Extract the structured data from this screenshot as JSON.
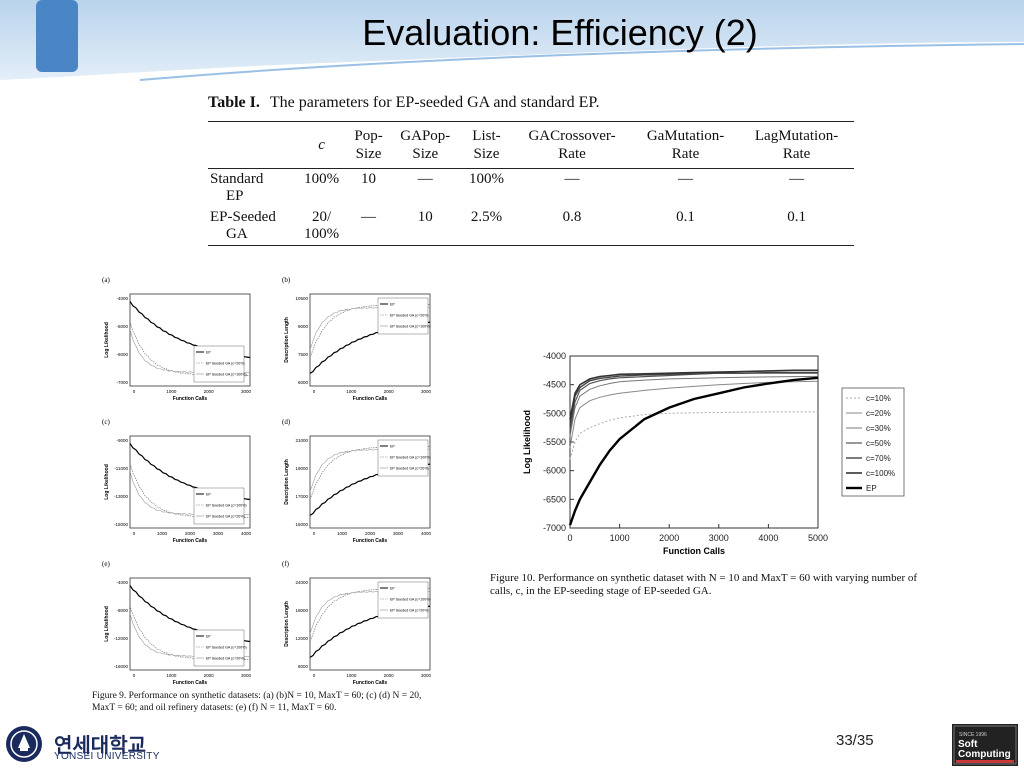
{
  "slide": {
    "title": "Evaluation: Efficiency (2)",
    "page_number": "33/35"
  },
  "table": {
    "label": "Table I.",
    "caption": "The parameters for EP-seeded GA and standard EP.",
    "headers": [
      [
        "",
        "c"
      ],
      [
        "Pop-",
        "Size"
      ],
      [
        "GAPop-",
        "Size"
      ],
      [
        "List-",
        "Size"
      ],
      [
        "GACrossover-",
        "Rate"
      ],
      [
        "GaMutation-",
        "Rate"
      ],
      [
        "LagMutation-",
        "Rate"
      ]
    ],
    "rows": [
      {
        "name": [
          "Standard",
          "EP"
        ],
        "c": [
          "100%",
          ""
        ],
        "values": [
          "10",
          "—",
          "100%",
          "—",
          "—",
          "—"
        ]
      },
      {
        "name": [
          "EP-Seeded",
          "GA"
        ],
        "c": [
          "20/",
          "100%"
        ],
        "values": [
          "—",
          "10",
          "2.5%",
          "0.8",
          "0.1",
          "0.1"
        ]
      }
    ]
  },
  "figure9": {
    "caption": "Figure 9.   Performance on synthetic datasets: (a) (b)N = 10, MaxT = 60; (c) (d) N = 20, MaxT = 60; and oil refinery datasets: (e) (f) N = 11, MaxT = 60.",
    "panels": [
      {
        "label": "(a)",
        "ylabel": "Log Likelihood",
        "xlabel": "Function Calls",
        "yticks": [
          "-4000",
          "-5000",
          "-6000",
          "-7000"
        ],
        "xticks": [
          "0",
          "1000",
          "2000",
          "3000"
        ],
        "legend": [
          "EP",
          "EP Seeded GA (c=20%)",
          "EP Seeded GA (c=100%)"
        ]
      },
      {
        "label": "(b)",
        "ylabel": "Description Length",
        "xlabel": "Function Calls",
        "yticks": [
          "10500",
          "9000",
          "7500",
          "6000"
        ],
        "xticks": [
          "0",
          "1000",
          "2000",
          "3000"
        ],
        "legend": [
          "EP",
          "EP Seeded GA (c=20%)",
          "EP Seeded GA (c=100%)"
        ]
      },
      {
        "label": "(c)",
        "ylabel": "Log Likelihood",
        "xlabel": "Function Calls",
        "yticks": [
          "-9000",
          "-11000",
          "-13000",
          "-15000"
        ],
        "xticks": [
          "0",
          "1000",
          "2000",
          "3000",
          "4000"
        ],
        "legend": [
          "EP",
          "EP Seeded GA (c=100%)",
          "EP Seeded GA (c=20%)"
        ]
      },
      {
        "label": "(d)",
        "ylabel": "Description Length",
        "xlabel": "Function Calls",
        "yticks": [
          "21000",
          "19000",
          "17000",
          "15000"
        ],
        "xticks": [
          "0",
          "1000",
          "2000",
          "3000",
          "4000"
        ],
        "legend": [
          "EP",
          "EP Seeded GA (c=100%)",
          "EP Seeded GA (c=20%)"
        ]
      },
      {
        "label": "(e)",
        "ylabel": "Log Likelihood",
        "xlabel": "Function Calls",
        "yticks": [
          "-4000",
          "-8000",
          "-12000",
          "-16000"
        ],
        "xticks": [
          "0",
          "1000",
          "2000",
          "3000"
        ],
        "legend": [
          "EP",
          "EP Seeded GA (c=100%)",
          "EP Seeded GA (c=20%)"
        ]
      },
      {
        "label": "(f)",
        "ylabel": "Description Length",
        "xlabel": "Function Calls",
        "yticks": [
          "24000",
          "18000",
          "12000",
          "8000"
        ],
        "xticks": [
          "0",
          "1000",
          "2000",
          "3000"
        ],
        "legend": [
          "EP",
          "EP Seeded GA (c=100%)",
          "EP Seeded GA (c=20%)"
        ]
      }
    ]
  },
  "figure10": {
    "caption": "Figure 10.   Performance on synthetic dataset with N = 10 and MaxT = 60 with varying number of calls, c, in the EP-seeding stage of EP-seeded GA."
  },
  "chart_data": {
    "type": "line",
    "xlabel": "Function Calls",
    "ylabel": "Log Likelihood",
    "xlim": [
      0,
      5000
    ],
    "ylim": [
      -7000,
      -4000
    ],
    "xticks": [
      0,
      1000,
      2000,
      3000,
      4000,
      5000
    ],
    "yticks": [
      -4000,
      -4500,
      -5000,
      -5500,
      -6000,
      -6500,
      -7000
    ],
    "grid": false,
    "legend_position": "right",
    "x": [
      0,
      100,
      200,
      400,
      600,
      800,
      1000,
      1500,
      2000,
      2500,
      3000,
      3500,
      4000,
      4500,
      5000
    ],
    "series": [
      {
        "name": "c=10%",
        "values": [
          -5800,
          -5500,
          -5350,
          -5250,
          -5180,
          -5120,
          -5080,
          -5020,
          -5000,
          -4990,
          -4985,
          -4980,
          -4975,
          -4975,
          -4975
        ]
      },
      {
        "name": "c=20%",
        "values": [
          -5600,
          -5100,
          -4900,
          -4780,
          -4720,
          -4680,
          -4650,
          -4600,
          -4560,
          -4530,
          -4500,
          -4480,
          -4460,
          -4450,
          -4440
        ]
      },
      {
        "name": "c=30%",
        "values": [
          -5400,
          -4900,
          -4700,
          -4580,
          -4520,
          -4480,
          -4450,
          -4420,
          -4400,
          -4390,
          -4380,
          -4370,
          -4365,
          -4360,
          -4355
        ]
      },
      {
        "name": "c=50%",
        "values": [
          -5300,
          -4800,
          -4600,
          -4480,
          -4430,
          -4400,
          -4380,
          -4360,
          -4340,
          -4320,
          -4300,
          -4300,
          -4300,
          -4300,
          -4300
        ]
      },
      {
        "name": "c=70%",
        "values": [
          -5200,
          -4700,
          -4550,
          -4430,
          -4390,
          -4370,
          -4350,
          -4330,
          -4320,
          -4310,
          -4300,
          -4300,
          -4290,
          -4290,
          -4290
        ]
      },
      {
        "name": "c=100%",
        "values": [
          -5100,
          -4650,
          -4500,
          -4400,
          -4360,
          -4340,
          -4320,
          -4310,
          -4300,
          -4290,
          -4280,
          -4270,
          -4260,
          -4250,
          -4250
        ]
      },
      {
        "name": "EP",
        "values": [
          -6950,
          -6700,
          -6500,
          -6200,
          -5900,
          -5650,
          -5450,
          -5100,
          -4900,
          -4750,
          -4650,
          -4550,
          -4480,
          -4420,
          -4380
        ]
      }
    ]
  }
}
